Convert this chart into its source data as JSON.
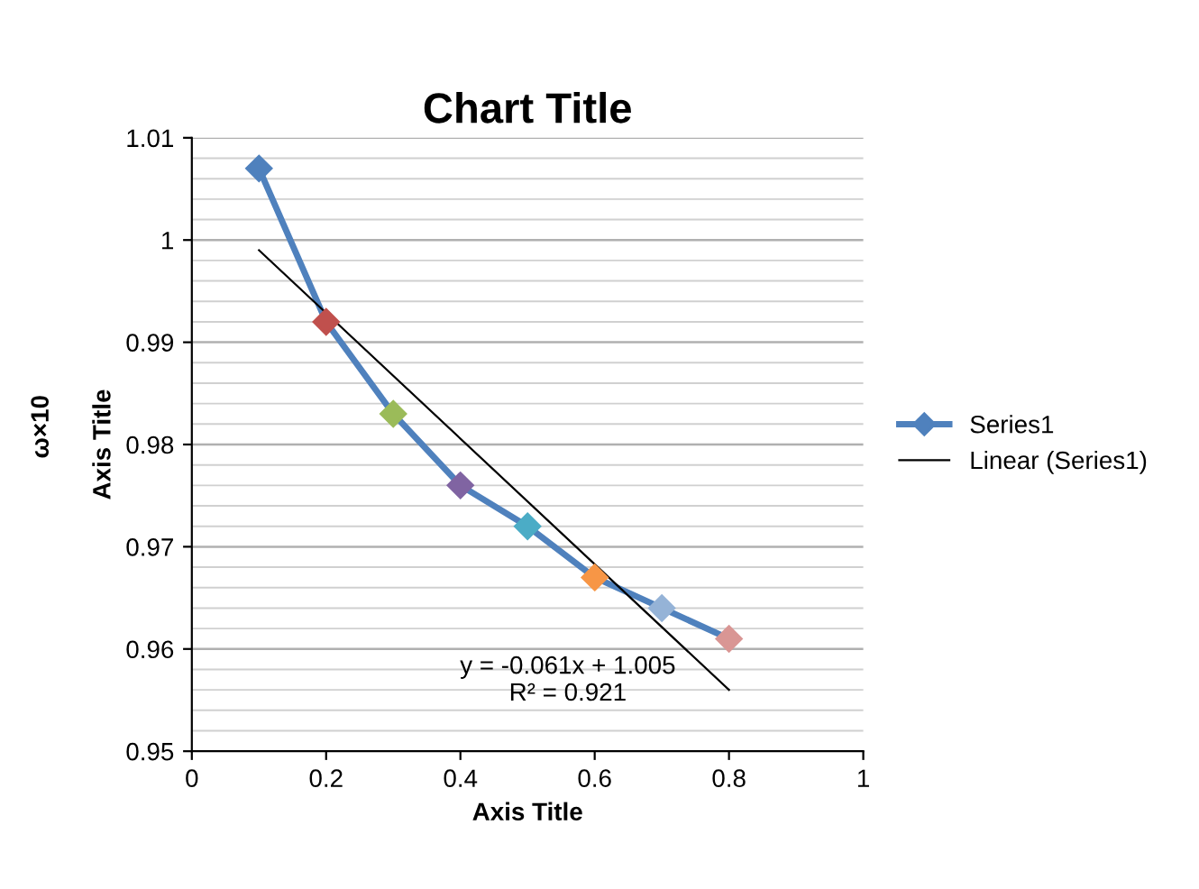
{
  "chart_data": {
    "type": "line",
    "title": "Chart Title",
    "xlabel": "Axis Title",
    "ylabel": "Axis Title",
    "annotations": [
      "ω×10",
      "y = -0.061x + 1.005\nR² = 0.921"
    ],
    "series": [
      {
        "name": "Series1",
        "color": "#4f81bd",
        "x": [
          0.1,
          0.2,
          0.3,
          0.4,
          0.5,
          0.6,
          0.7,
          0.8
        ],
        "values": [
          1.007,
          0.992,
          0.983,
          0.976,
          0.972,
          0.967,
          0.964,
          0.961
        ],
        "colors": [
          "#4f81bd",
          "#c0504d",
          "#9bbb59",
          "#8064a2",
          "#4bacc6",
          "#f79646",
          "#95b3d7",
          "#d99694"
        ]
      },
      {
        "name": "Linear (Series1)",
        "type": "line",
        "color": "#000000",
        "x": [
          0.1,
          0.8
        ],
        "values": [
          0.999,
          0.956
        ],
        "marker": "none"
      }
    ],
    "xlim": [
      0,
      1
    ],
    "xticks": [
      0,
      0.2,
      0.4,
      0.6,
      0.8,
      1
    ],
    "ylim": [
      0.95,
      1.01
    ],
    "yticks": [
      0.95,
      0.96,
      0.97,
      0.98,
      0.99,
      1,
      1.01
    ],
    "grid": "y",
    "legend": "right",
    "marker": "diamond"
  }
}
